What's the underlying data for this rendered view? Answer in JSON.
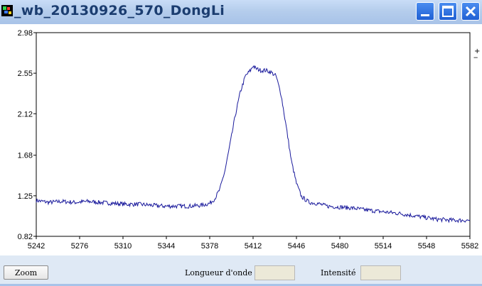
{
  "window": {
    "title": "_wb_20130926_570_DongLi",
    "icon": "app-logo-icon",
    "controls": [
      "minimize-icon",
      "maximize-icon",
      "close-icon"
    ]
  },
  "plot": {
    "corner_plus": "+",
    "corner_dash": "--",
    "line_color": "#1a1a9c"
  },
  "chart_data": {
    "type": "line",
    "title": "",
    "xlabel": "",
    "ylabel": "",
    "xlim": [
      5242,
      5582
    ],
    "ylim": [
      0.82,
      2.98
    ],
    "x_ticks": [
      "5242",
      "5276",
      "5310",
      "5344",
      "5378",
      "5412",
      "5446",
      "5480",
      "5514",
      "5548",
      "5582"
    ],
    "y_ticks": [
      "2.98",
      "2.55",
      "2.12",
      "1.68",
      "1.25",
      "0.82"
    ],
    "series": [
      {
        "x": [
          5242,
          5252,
          5262,
          5272,
          5282,
          5292,
          5302,
          5312,
          5322,
          5332,
          5342,
          5352,
          5362,
          5372,
          5378,
          5382,
          5386,
          5390,
          5394,
          5398,
          5402,
          5406,
          5410,
          5412,
          5414,
          5418,
          5422,
          5426,
          5430,
          5434,
          5438,
          5442,
          5446,
          5450,
          5456,
          5462,
          5470,
          5480,
          5490,
          5500,
          5514,
          5528,
          5542,
          5556,
          5570,
          5582
        ],
        "y": [
          1.2,
          1.18,
          1.19,
          1.18,
          1.19,
          1.18,
          1.17,
          1.16,
          1.16,
          1.15,
          1.14,
          1.14,
          1.14,
          1.15,
          1.17,
          1.22,
          1.32,
          1.52,
          1.8,
          2.1,
          2.35,
          2.52,
          2.58,
          2.63,
          2.6,
          2.58,
          2.58,
          2.56,
          2.52,
          2.32,
          1.98,
          1.62,
          1.38,
          1.24,
          1.18,
          1.17,
          1.14,
          1.13,
          1.12,
          1.1,
          1.08,
          1.06,
          1.03,
          1.0,
          0.99,
          0.99
        ]
      }
    ]
  },
  "bottom": {
    "zoom_label": "Zoom",
    "wavelength_label": "Longueur d'onde",
    "wavelength_value": "",
    "intensity_label": "Intensité",
    "intensity_value": ""
  }
}
